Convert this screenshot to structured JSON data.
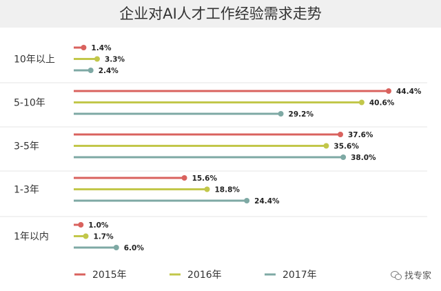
{
  "watermark": {
    "text": "找专家",
    "icon": "wechat-icon"
  },
  "chart_data": {
    "type": "bar",
    "orientation": "horizontal",
    "title": "企业对AI人才工作经验需求走势",
    "categories": [
      "10年以上",
      "5-10年",
      "3-5年",
      "1-3年",
      "1年以内"
    ],
    "series": [
      {
        "name": "2015年",
        "color": "#d9625e",
        "values": [
          1.4,
          44.4,
          37.6,
          15.6,
          1.0
        ],
        "labels": [
          "1.4%",
          "44.4%",
          "37.6%",
          "15.6%",
          "1.0%"
        ]
      },
      {
        "name": "2016年",
        "color": "#c2c74a",
        "values": [
          3.3,
          40.6,
          35.6,
          18.8,
          1.7
        ],
        "labels": [
          "3.3%",
          "40.6%",
          "35.6%",
          "18.8%",
          "1.7%"
        ]
      },
      {
        "name": "2017年",
        "color": "#7ea9a4",
        "values": [
          2.4,
          29.2,
          38.0,
          24.4,
          6.0
        ],
        "labels": [
          "2.4%",
          "29.2%",
          "38.0%",
          "24.4%",
          "6.0%"
        ]
      }
    ],
    "grid": false,
    "legend": "bottom",
    "xlim": [
      0,
      44.4
    ]
  }
}
